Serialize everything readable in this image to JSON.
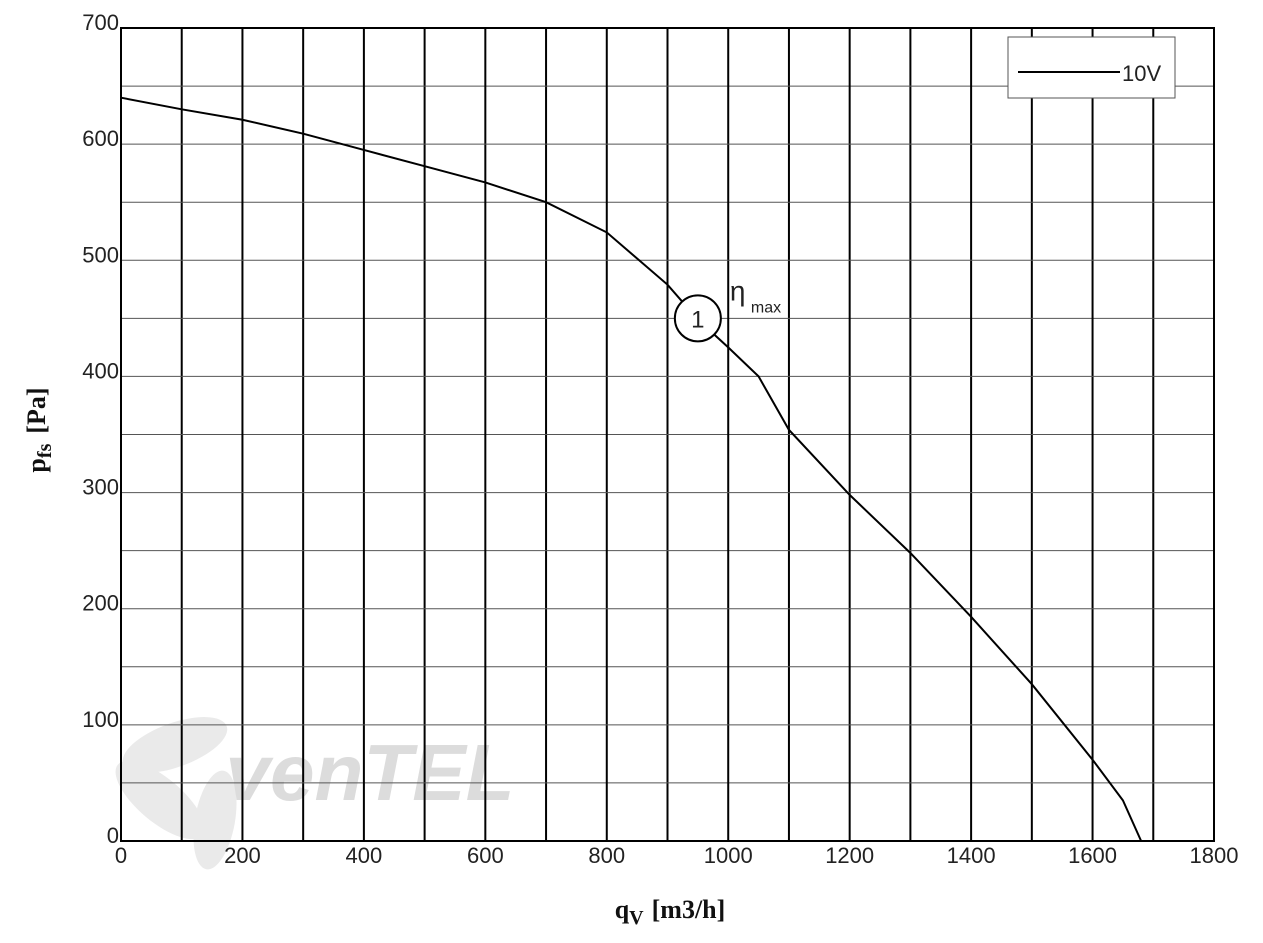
{
  "chart_data": {
    "type": "line",
    "x": [
      0,
      100,
      200,
      300,
      400,
      500,
      600,
      700,
      800,
      900,
      950,
      1000,
      1050,
      1100,
      1200,
      1300,
      1400,
      1500,
      1600,
      1650,
      1680
    ],
    "series": [
      {
        "name": "10V",
        "color": "#000000",
        "values": [
          640,
          630,
          621,
          609,
          595,
          581,
          567,
          550,
          524,
          479,
          449,
          425,
          400,
          354,
          298,
          248,
          193,
          135,
          70,
          35,
          0
        ]
      }
    ],
    "xlim": [
      0,
      1800
    ],
    "ylim": [
      0,
      700
    ],
    "xticks": [
      0,
      200,
      400,
      600,
      800,
      1000,
      1200,
      1400,
      1600,
      1800
    ],
    "yticks": [
      0,
      100,
      200,
      300,
      400,
      500,
      600,
      700
    ],
    "xticks_minor": [
      100,
      300,
      500,
      700,
      900,
      1100,
      1300,
      1500,
      1700
    ],
    "yticks_minor": [
      50,
      150,
      250,
      350,
      450,
      550,
      650
    ],
    "grid": true,
    "legend": "upper right",
    "x_label": {
      "main": "q",
      "sub": "V",
      "unit": "[m3/h]"
    },
    "y_label": {
      "main": "p",
      "sub": "fs",
      "unit": "[Pa]"
    },
    "annotation": {
      "marker": "1",
      "x": 950,
      "y": 450,
      "symbol": "η",
      "subscript": "max"
    },
    "watermark": "venTEL"
  }
}
